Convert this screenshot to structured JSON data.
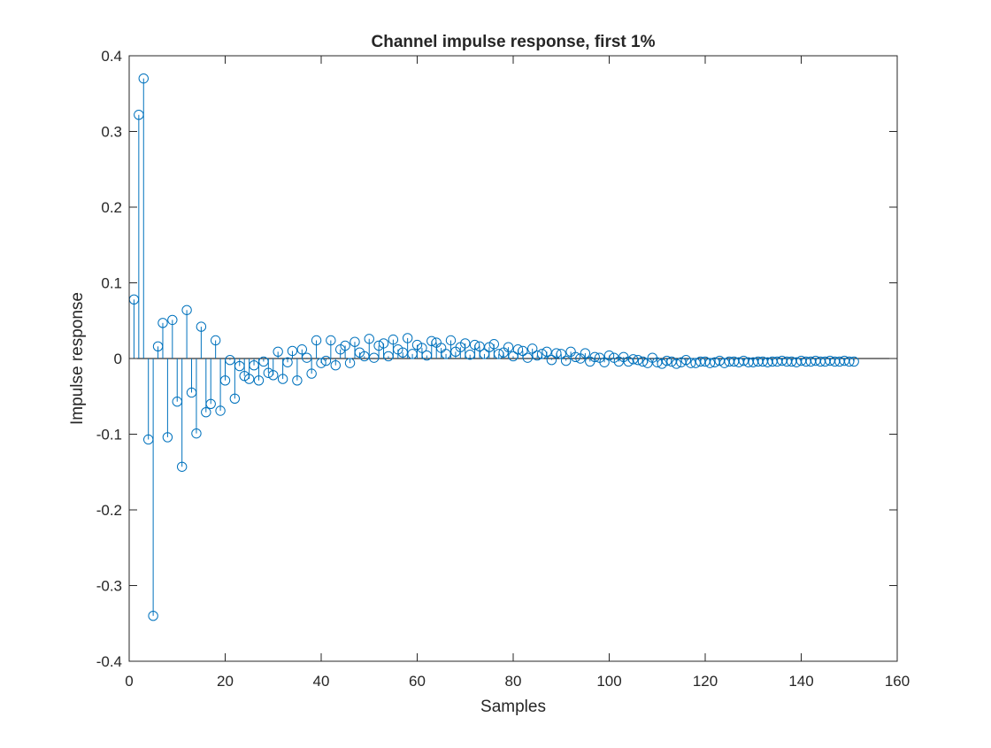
{
  "chart_data": {
    "type": "stem",
    "title": "Channel impulse response, first 1%",
    "xlabel": "Samples",
    "ylabel": "Impulse response",
    "xlim": [
      0,
      160
    ],
    "ylim": [
      -0.4,
      0.4
    ],
    "xticks": [
      "0",
      "20",
      "40",
      "60",
      "80",
      "100",
      "120",
      "140",
      "160"
    ],
    "yticks": [
      "-0.4",
      "-0.3",
      "-0.2",
      "-0.1",
      "0",
      "0.1",
      "0.2",
      "0.3",
      "0.4"
    ],
    "grid": false,
    "legend": "none",
    "series_color": "#0072BD",
    "baseline_color": "#000000",
    "x": [
      1,
      2,
      3,
      4,
      5,
      6,
      7,
      8,
      9,
      10,
      11,
      12,
      13,
      14,
      15,
      16,
      17,
      18,
      19,
      20,
      21,
      22,
      23,
      24,
      25,
      26,
      27,
      28,
      29,
      30,
      31,
      32,
      33,
      34,
      35,
      36,
      37,
      38,
      39,
      40,
      41,
      42,
      43,
      44,
      45,
      46,
      47,
      48,
      49,
      50,
      51,
      52,
      53,
      54,
      55,
      56,
      57,
      58,
      59,
      60,
      61,
      62,
      63,
      64,
      65,
      66,
      67,
      68,
      69,
      70,
      71,
      72,
      73,
      74,
      75,
      76,
      77,
      78,
      79,
      80,
      81,
      82,
      83,
      84,
      85,
      86,
      87,
      88,
      89,
      90,
      91,
      92,
      93,
      94,
      95,
      96,
      97,
      98,
      99,
      100,
      101,
      102,
      103,
      104,
      105,
      106,
      107,
      108,
      109,
      110,
      111,
      112,
      113,
      114,
      115,
      116,
      117,
      118,
      119,
      120,
      121,
      122,
      123,
      124,
      125,
      126,
      127,
      128,
      129,
      130,
      131,
      132,
      133,
      134,
      135,
      136,
      137,
      138,
      139,
      140,
      141,
      142,
      143,
      144,
      145,
      146,
      147,
      148,
      149,
      150,
      151
    ],
    "values": [
      0.078,
      0.322,
      0.37,
      -0.107,
      -0.34,
      0.016,
      0.047,
      -0.104,
      0.051,
      -0.057,
      -0.143,
      0.064,
      -0.045,
      -0.099,
      0.042,
      -0.071,
      -0.06,
      0.024,
      -0.069,
      -0.029,
      -0.002,
      -0.053,
      -0.01,
      -0.023,
      -0.027,
      -0.009,
      -0.029,
      -0.004,
      -0.019,
      -0.022,
      0.009,
      -0.027,
      -0.005,
      0.01,
      -0.029,
      0.012,
      0.001,
      -0.02,
      0.024,
      -0.006,
      -0.003,
      0.024,
      -0.009,
      0.012,
      0.017,
      -0.006,
      0.022,
      0.008,
      0.003,
      0.026,
      0.001,
      0.017,
      0.02,
      0.003,
      0.025,
      0.012,
      0.008,
      0.027,
      0.006,
      0.018,
      0.014,
      0.004,
      0.023,
      0.021,
      0.014,
      0.006,
      0.024,
      0.009,
      0.015,
      0.02,
      0.005,
      0.018,
      0.016,
      0.006,
      0.015,
      0.019,
      0.006,
      0.008,
      0.015,
      0.003,
      0.012,
      0.01,
      0.001,
      0.013,
      0.004,
      0.006,
      0.009,
      -0.002,
      0.007,
      0.006,
      -0.003,
      0.009,
      0.002,
      0.0,
      0.007,
      -0.004,
      0.002,
      0.001,
      -0.005,
      0.004,
      0.001,
      -0.004,
      0.002,
      -0.004,
      -0.001,
      -0.002,
      -0.004,
      -0.006,
      0.001,
      -0.005,
      -0.007,
      -0.003,
      -0.004,
      -0.007,
      -0.005,
      -0.002,
      -0.006,
      -0.006,
      -0.004,
      -0.004,
      -0.006,
      -0.005,
      -0.003,
      -0.006,
      -0.004,
      -0.004,
      -0.005,
      -0.003,
      -0.005,
      -0.005,
      -0.004,
      -0.004,
      -0.005,
      -0.004,
      -0.004,
      -0.003,
      -0.004,
      -0.004,
      -0.005,
      -0.003,
      -0.004,
      -0.004,
      -0.003,
      -0.004,
      -0.004,
      -0.003,
      -0.004,
      -0.004,
      -0.003,
      -0.004,
      -0.004
    ]
  }
}
